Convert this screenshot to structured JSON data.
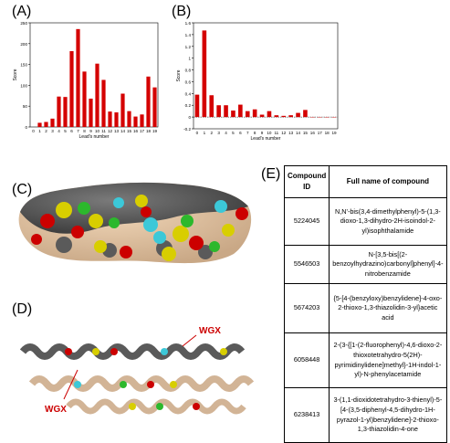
{
  "labels": {
    "A": "(A)",
    "B": "(B)",
    "C": "(C)",
    "D": "(D)",
    "E": "(E)"
  },
  "chart_data": [
    {
      "type": "bar",
      "panel": "A",
      "xlabel": "Lead's number",
      "ylabel": "Score",
      "ylim": [
        0,
        250
      ],
      "yticks": [
        0,
        50,
        100,
        150,
        200,
        250
      ],
      "xticks": [
        0,
        1,
        2,
        3,
        4,
        5,
        6,
        7,
        8,
        9,
        10,
        11,
        12,
        13,
        14,
        15,
        16,
        17,
        18,
        19
      ],
      "x": [
        1,
        2,
        3,
        4,
        5,
        6,
        7,
        8,
        9,
        10,
        11,
        12,
        13,
        14,
        15,
        16,
        17,
        18,
        19
      ],
      "values": [
        10,
        12,
        20,
        73,
        72,
        182,
        235,
        133,
        68,
        152,
        113,
        37,
        35,
        80,
        38,
        25,
        30,
        121,
        95
      ],
      "color": "#d40000",
      "grid": false
    },
    {
      "type": "bar",
      "panel": "B",
      "xlabel": "Lead's number",
      "ylabel": "Score",
      "ylim": [
        -0.2,
        1.6
      ],
      "yticks": [
        -0.2,
        0,
        0.2,
        0.4,
        0.6,
        0.8,
        1.0,
        1.2,
        1.4,
        1.6
      ],
      "xticks": [
        0,
        1,
        2,
        3,
        4,
        5,
        6,
        7,
        8,
        9,
        10,
        11,
        12,
        13,
        14,
        15,
        16,
        17,
        18,
        19
      ],
      "x": [
        0,
        1,
        2,
        3,
        4,
        5,
        6,
        7,
        8,
        9,
        10,
        11,
        12,
        13,
        14,
        15,
        16,
        17,
        18,
        19
      ],
      "values": [
        0.38,
        1.47,
        0.37,
        0.2,
        0.2,
        0.11,
        0.21,
        0.1,
        0.13,
        0.04,
        0.1,
        0.03,
        0.02,
        0.03,
        0.07,
        0.12,
        0.0,
        0.0,
        0.0,
        0.0
      ],
      "color": "#d40000",
      "grid": false
    }
  ],
  "structure_d": {
    "annotation_top": "WGX",
    "annotation_bottom": "WGX"
  },
  "table": {
    "headers": {
      "id": "Compound ID",
      "name": "Full name of compound"
    },
    "rows": [
      {
        "id": "5224045",
        "name": "N,N'-bis(3,4-dimethylphenyl)-5-(1,3-dioxo-1,3-dihydro-2H-isoindol-2-yl)isophthalamide"
      },
      {
        "id": "5546503",
        "name": "N-[3,5-bis[(2-benzoylhydrazino)carbonyl]phenyl]-4-nitrobenzamide"
      },
      {
        "id": "5674203",
        "name": "{5-[4-(benzyloxy)benzylidene]-4-oxo-2-thioxo-1,3-thiazolidin-3-yl}acetic acid"
      },
      {
        "id": "6058448",
        "name": "2-(3-{[1-(2-fluorophenyl)-4,6-dioxo-2-thioxotetrahydro-5(2H)-pyrimidinylidene]methyl}-1H-indol-1-yl)-N-phenylacetamide"
      },
      {
        "id": "6238413",
        "name": "3-(1,1-dioxidotetrahydro-3-thienyl)-5-[4-(3,5-diphenyl-4,5-dihydro-1H-pyrazol-1-yl)benzylidene]-2-thioxo-1,3-thiazolidin-4-one"
      }
    ]
  }
}
